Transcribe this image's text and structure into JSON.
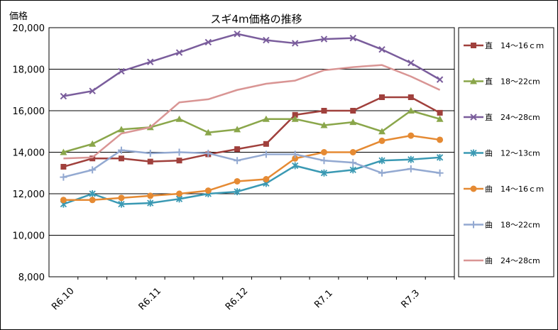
{
  "chart_data": {
    "type": "line",
    "title": "スギ4m価格の推移",
    "ylabel": "価格",
    "xlabel": "",
    "ylim": [
      8000,
      20000
    ],
    "yticks": [
      8000,
      10000,
      12000,
      14000,
      16000,
      18000,
      20000
    ],
    "ytick_labels": [
      "8,000",
      "10,000",
      "12,000",
      "14,000",
      "16,000",
      "18,000",
      "20,000"
    ],
    "x_tick_labels": [
      "R6.10",
      "",
      "",
      "R6.11",
      "",
      "",
      "R6.12",
      "",
      "",
      "R7.1",
      "",
      "",
      "R7.3",
      ""
    ],
    "grid": "horizontal",
    "legend_position": "right",
    "series": [
      {
        "name": "直　14～16ｃｍ",
        "color": "#a0403c",
        "marker": "square",
        "values": [
          13300,
          13700,
          13700,
          13550,
          13600,
          13900,
          14150,
          14400,
          15800,
          16000,
          16000,
          16650,
          16650,
          15900
        ]
      },
      {
        "name": "直　18～22cm",
        "color": "#8aa64a",
        "marker": "triangle",
        "values": [
          14000,
          14400,
          15100,
          15200,
          15600,
          14950,
          15100,
          15600,
          15600,
          15300,
          15450,
          15000,
          16000,
          15600
        ]
      },
      {
        "name": "直　24～28cm",
        "color": "#7a5d9c",
        "marker": "x",
        "values": [
          16700,
          16950,
          17900,
          18350,
          18800,
          19300,
          19700,
          19400,
          19250,
          19450,
          19500,
          18950,
          18300,
          17500
        ]
      },
      {
        "name": "曲　12～13cm",
        "color": "#3a99b3",
        "marker": "star",
        "values": [
          11500,
          12000,
          11500,
          11550,
          11750,
          12000,
          12100,
          12500,
          13350,
          13000,
          13150,
          13600,
          13650,
          13750
        ]
      },
      {
        "name": "曲　14～16ｃｍ",
        "color": "#e58a33",
        "marker": "circle",
        "values": [
          11700,
          11700,
          11800,
          11900,
          12000,
          12150,
          12600,
          12700,
          13700,
          14000,
          14000,
          14550,
          14800,
          14600
        ]
      },
      {
        "name": "曲　18～22cm",
        "color": "#93a9d1",
        "marker": "plus",
        "values": [
          12800,
          13150,
          14100,
          13950,
          14000,
          13950,
          13600,
          13900,
          13900,
          13600,
          13500,
          13000,
          13200,
          13000
        ]
      },
      {
        "name": "曲　24～28cm",
        "color": "#d99594",
        "marker": "none",
        "values": [
          13700,
          13750,
          14900,
          15200,
          16400,
          16550,
          17000,
          17300,
          17450,
          17950,
          18100,
          18200,
          17650,
          17000
        ]
      }
    ]
  }
}
